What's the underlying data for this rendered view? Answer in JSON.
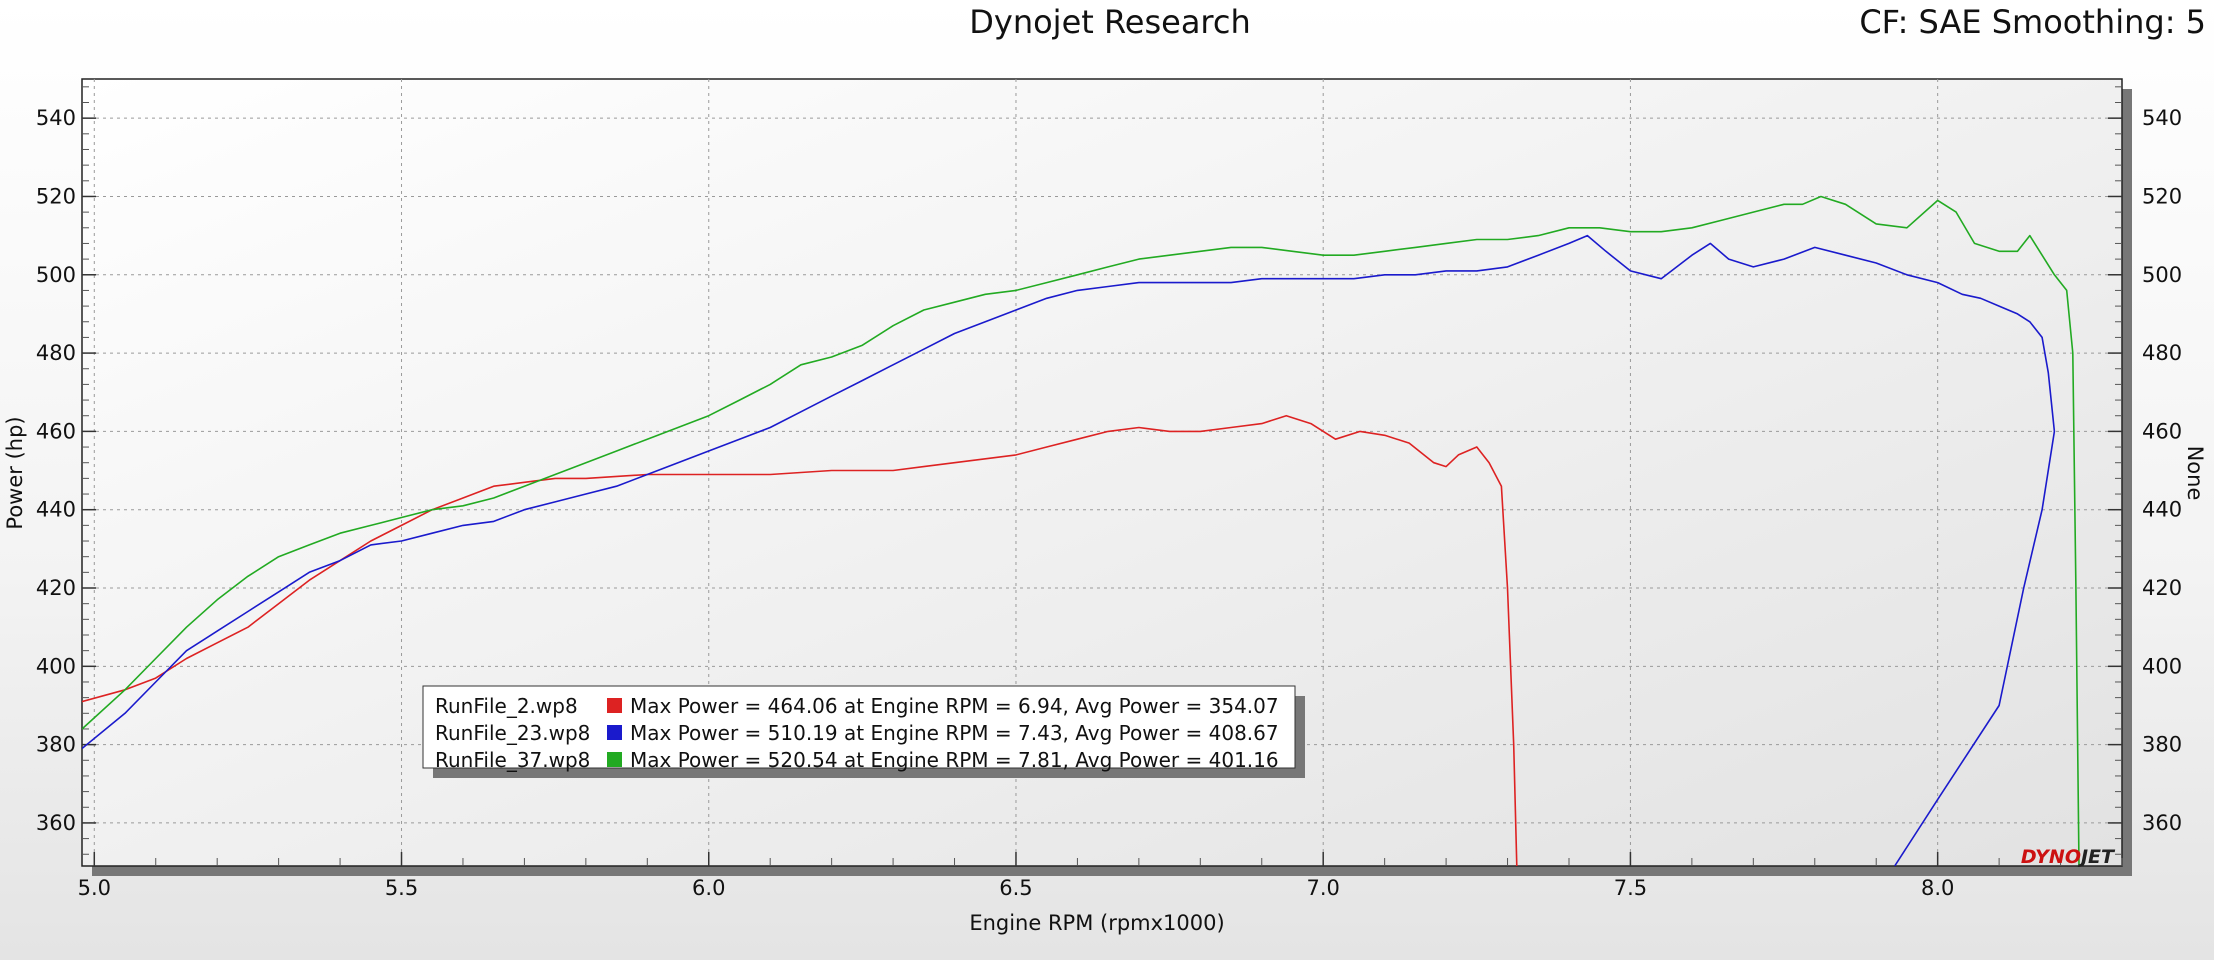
{
  "header": {
    "title": "Dynojet Research",
    "right_text": "CF: SAE Smoothing: 5"
  },
  "brand": {
    "part1": "DYNO",
    "part2": "JET",
    "color1": "#cc1111",
    "color2": "#222222"
  },
  "chart_data": {
    "type": "line",
    "xlabel": "Engine RPM (rpmx1000)",
    "ylabel": "Power (hp)",
    "y2label": "None",
    "xlim": [
      4.98,
      8.3
    ],
    "ylim": [
      349,
      550
    ],
    "xticks": [
      5.0,
      5.5,
      6.0,
      6.5,
      7.0,
      7.5,
      8.0
    ],
    "xtick_labels": [
      "5.0",
      "5.5",
      "6.0",
      "6.5",
      "7.0",
      "7.5",
      "8.0"
    ],
    "yticks": [
      360,
      380,
      400,
      420,
      440,
      460,
      480,
      500,
      520,
      540
    ],
    "ytick_labels": [
      "360",
      "380",
      "400",
      "420",
      "440",
      "460",
      "480",
      "500",
      "520",
      "540"
    ],
    "grid": true,
    "legend_position": "bottom-left",
    "series": [
      {
        "name": "RunFile_2.wp8",
        "color": "#dd2222",
        "summary": "Max Power = 464.06 at Engine RPM = 6.94,  Avg Power = 354.07",
        "x": [
          4.98,
          5.05,
          5.1,
          5.15,
          5.2,
          5.25,
          5.3,
          5.35,
          5.4,
          5.45,
          5.5,
          5.55,
          5.6,
          5.65,
          5.7,
          5.75,
          5.8,
          5.85,
          5.9,
          5.95,
          6.0,
          6.05,
          6.1,
          6.15,
          6.2,
          6.25,
          6.3,
          6.35,
          6.4,
          6.45,
          6.5,
          6.55,
          6.6,
          6.65,
          6.7,
          6.75,
          6.8,
          6.85,
          6.9,
          6.94,
          6.98,
          7.02,
          7.06,
          7.1,
          7.14,
          7.18,
          7.2,
          7.22,
          7.25,
          7.27,
          7.29,
          7.3,
          7.31,
          7.315
        ],
        "y": [
          391,
          394,
          397,
          402,
          406,
          410,
          416,
          422,
          427,
          432,
          436,
          440,
          443,
          446,
          447,
          448,
          448,
          448.5,
          449,
          449,
          449,
          449,
          449,
          449.5,
          450,
          450,
          450,
          451,
          452,
          453,
          454,
          456,
          458,
          460,
          461,
          460,
          460,
          461,
          462,
          464,
          462,
          458,
          460,
          459,
          457,
          452,
          451,
          454,
          456,
          452,
          446,
          420,
          380,
          349
        ]
      },
      {
        "name": "RunFile_23.wp8",
        "color": "#1a1acc",
        "summary": "Max Power = 510.19 at Engine RPM = 7.43,  Avg Power = 408.67",
        "x": [
          4.98,
          5.05,
          5.1,
          5.15,
          5.2,
          5.25,
          5.3,
          5.35,
          5.4,
          5.45,
          5.5,
          5.55,
          5.6,
          5.65,
          5.7,
          5.75,
          5.8,
          5.85,
          5.9,
          5.95,
          6.0,
          6.05,
          6.1,
          6.15,
          6.2,
          6.25,
          6.3,
          6.35,
          6.4,
          6.45,
          6.5,
          6.55,
          6.6,
          6.65,
          6.7,
          6.75,
          6.8,
          6.85,
          6.9,
          6.95,
          7.0,
          7.05,
          7.1,
          7.15,
          7.2,
          7.25,
          7.3,
          7.35,
          7.4,
          7.43,
          7.46,
          7.5,
          7.55,
          7.6,
          7.63,
          7.66,
          7.7,
          7.75,
          7.8,
          7.85,
          7.9,
          7.95,
          8.0,
          8.04,
          8.07,
          8.1,
          8.13,
          8.15,
          8.17,
          8.18,
          8.19,
          8.17,
          8.14,
          8.1,
          8.0,
          7.93
        ],
        "y": [
          379,
          388,
          396,
          404,
          409,
          414,
          419,
          424,
          427,
          431,
          432,
          434,
          436,
          437,
          440,
          442,
          444,
          446,
          449,
          452,
          455,
          458,
          461,
          465,
          469,
          473,
          477,
          481,
          485,
          488,
          491,
          494,
          496,
          497,
          498,
          498,
          498,
          498,
          499,
          499,
          499,
          499,
          500,
          500,
          501,
          501,
          502,
          505,
          508,
          510,
          506,
          501,
          499,
          505,
          508,
          504,
          502,
          504,
          507,
          505,
          503,
          500,
          498,
          495,
          494,
          492,
          490,
          488,
          484,
          475,
          460,
          440,
          420,
          390,
          366,
          349
        ]
      },
      {
        "name": "RunFile_37.wp8",
        "color": "#22aa22",
        "summary": "Max Power = 520.54 at Engine RPM = 7.81,  Avg Power = 401.16",
        "x": [
          4.98,
          5.05,
          5.1,
          5.15,
          5.2,
          5.25,
          5.3,
          5.35,
          5.4,
          5.45,
          5.5,
          5.55,
          5.6,
          5.65,
          5.7,
          5.75,
          5.8,
          5.85,
          5.9,
          5.95,
          6.0,
          6.05,
          6.1,
          6.15,
          6.2,
          6.25,
          6.3,
          6.35,
          6.4,
          6.45,
          6.5,
          6.55,
          6.6,
          6.65,
          6.7,
          6.75,
          6.8,
          6.85,
          6.9,
          6.95,
          7.0,
          7.05,
          7.1,
          7.15,
          7.2,
          7.25,
          7.3,
          7.35,
          7.4,
          7.45,
          7.5,
          7.55,
          7.6,
          7.65,
          7.7,
          7.75,
          7.78,
          7.81,
          7.85,
          7.9,
          7.95,
          8.0,
          8.03,
          8.06,
          8.1,
          8.13,
          8.15,
          8.17,
          8.19,
          8.21,
          8.22,
          8.225,
          8.23
        ],
        "y": [
          384,
          394,
          402,
          410,
          417,
          423,
          428,
          431,
          434,
          436,
          438,
          440,
          441,
          443,
          446,
          449,
          452,
          455,
          458,
          461,
          464,
          468,
          472,
          477,
          479,
          482,
          487,
          491,
          493,
          495,
          496,
          498,
          500,
          502,
          504,
          505,
          506,
          507,
          507,
          506,
          505,
          505,
          506,
          507,
          508,
          509,
          509,
          510,
          512,
          512,
          511,
          511,
          512,
          514,
          516,
          518,
          518,
          520,
          518,
          513,
          512,
          519,
          516,
          508,
          506,
          506,
          510,
          505,
          500,
          496,
          480,
          420,
          349
        ]
      }
    ]
  }
}
